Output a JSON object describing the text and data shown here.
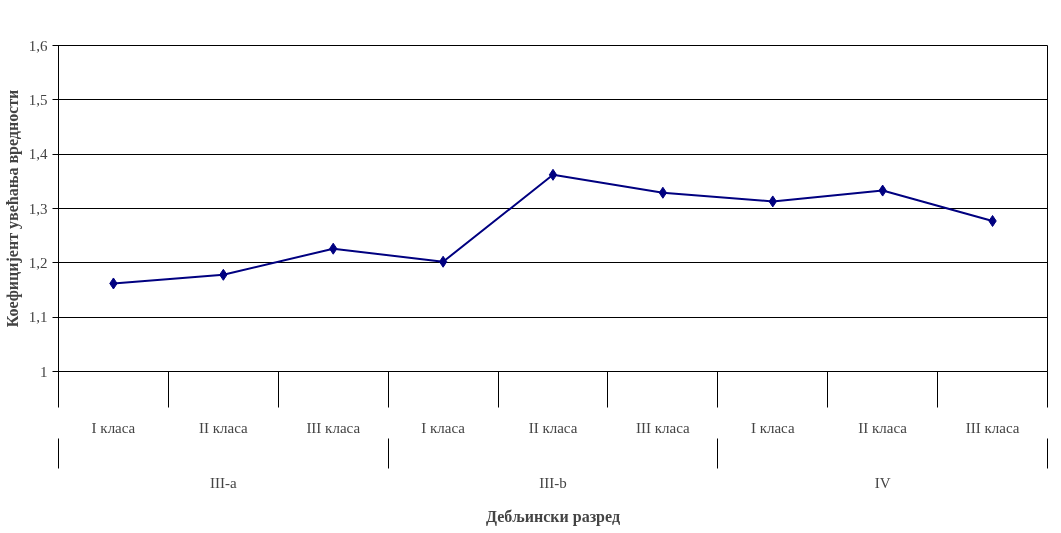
{
  "chart_data": {
    "type": "line",
    "xlabel": "Дебљински разред",
    "ylabel": "Коефицијент увећања вредности",
    "categories": [
      "I класа",
      "II класа",
      "III класа",
      "I класа",
      "II класа",
      "III класа",
      "I класа",
      "II класа",
      "III класа"
    ],
    "annotations": [
      "III-a",
      "III-b",
      "IV"
    ],
    "series": [
      {
        "color": "#000080",
        "values": [
          1.162,
          1.178,
          1.226,
          1.202,
          1.362,
          1.329,
          1.313,
          1.333,
          1.277
        ]
      }
    ],
    "ylim": [
      1,
      1.6
    ],
    "yticks": [
      1,
      {
        "value": 1.1,
        "label": "1,1"
      },
      {
        "value": 1.2,
        "label": "1,2"
      },
      {
        "value": 1.3,
        "label": "1,3"
      },
      {
        "value": 1.4,
        "label": "1,4"
      },
      {
        "value": 1.5,
        "label": "1,5"
      },
      {
        "value": 1.6,
        "label": "1,6"
      }
    ],
    "grid": "y",
    "marker": "diamond",
    "line_style": "solid"
  }
}
